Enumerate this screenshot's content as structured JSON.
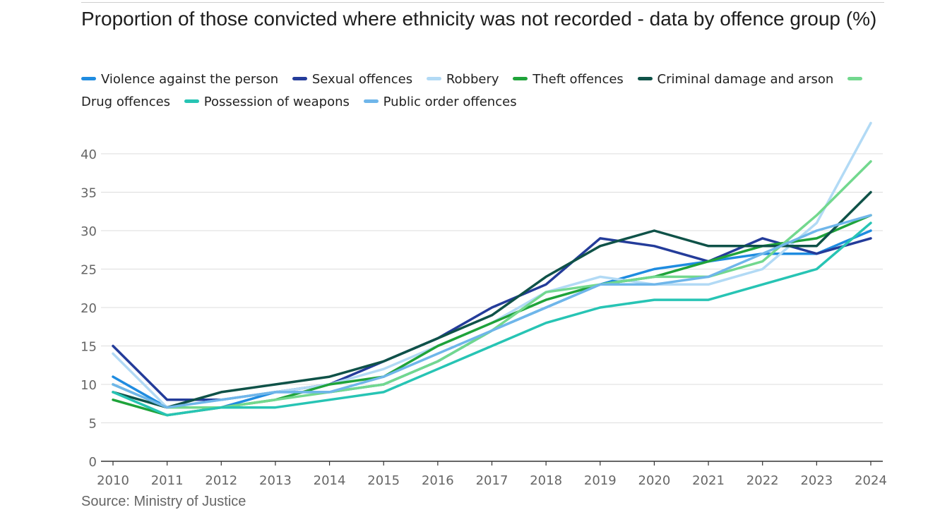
{
  "chart_data": {
    "type": "line",
    "title": "Proportion of those convicted where ethnicity was not recorded - data by offence group (%)",
    "source": "Source: Ministry of Justice",
    "xlabel": "",
    "ylabel": "",
    "ylim": [
      0,
      40
    ],
    "yticks": [
      "0",
      "5",
      "10",
      "15",
      "20",
      "25",
      "30",
      "35",
      "40"
    ],
    "grid": true,
    "legend_position": "top",
    "categories": [
      "2010",
      "2011",
      "2012",
      "2013",
      "2014",
      "2015",
      "2016",
      "2017",
      "2018",
      "2019",
      "2020",
      "2021",
      "2022",
      "2023",
      "2024"
    ],
    "series": [
      {
        "name": "Violence against the person",
        "color": "#1f8ce0",
        "values": [
          11,
          7,
          7,
          9,
          9,
          10,
          13,
          17,
          20,
          23,
          25,
          26,
          27,
          27,
          30
        ]
      },
      {
        "name": "Sexual offences",
        "color": "#243c9a",
        "values": [
          15,
          8,
          8,
          9,
          10,
          13,
          16,
          20,
          23,
          29,
          28,
          26,
          29,
          27,
          29
        ]
      },
      {
        "name": "Robbery",
        "color": "#b2daf5",
        "values": [
          14,
          7,
          8,
          9,
          10,
          12,
          15,
          18,
          22,
          24,
          23,
          23,
          25,
          31,
          44
        ]
      },
      {
        "name": "Theft offences",
        "color": "#1fa33a",
        "values": [
          8,
          6,
          7,
          8,
          10,
          11,
          15,
          18,
          21,
          23,
          24,
          26,
          28,
          29,
          32
        ]
      },
      {
        "name": "Criminal damage and arson",
        "color": "#0f5248",
        "values": [
          9,
          7,
          9,
          10,
          11,
          13,
          16,
          19,
          24,
          28,
          30,
          28,
          28,
          28,
          35
        ]
      },
      {
        "name": "Drug offences",
        "color": "#72d88e",
        "values": [
          10,
          7,
          7,
          8,
          9,
          10,
          13,
          17,
          22,
          23,
          24,
          24,
          26,
          32,
          39
        ]
      },
      {
        "name": "Possession of weapons",
        "color": "#27c4b4",
        "values": [
          9,
          6,
          7,
          7,
          8,
          9,
          12,
          15,
          18,
          20,
          21,
          21,
          23,
          25,
          31
        ]
      },
      {
        "name": "Public order offences",
        "color": "#6fb6ea",
        "values": [
          10,
          7,
          8,
          9,
          9,
          11,
          14,
          17,
          20,
          23,
          23,
          24,
          27,
          30,
          32
        ]
      }
    ]
  }
}
